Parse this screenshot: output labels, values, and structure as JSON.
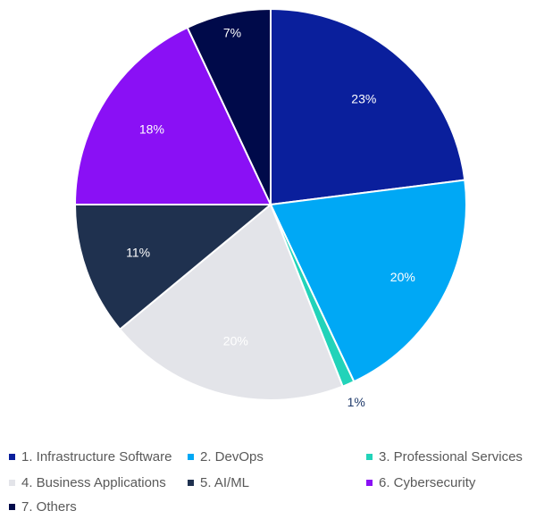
{
  "chart_data": {
    "type": "pie",
    "title": "",
    "slices": [
      {
        "label": "1. Infrastructure Software",
        "value": 23,
        "display": "23%",
        "color": "#0a1f9c",
        "label_color": "#ffffff"
      },
      {
        "label": "2. DevOps",
        "value": 20,
        "display": "20%",
        "color": "#00a8f5",
        "label_color": "#ffffff"
      },
      {
        "label": "3. Professional Services",
        "value": 1,
        "display": "1%",
        "color": "#22d3b9",
        "label_color": "#1f3a6b"
      },
      {
        "label": "4. Business Applications",
        "value": 20,
        "display": "20%",
        "color": "#e3e4e9",
        "label_color": "#ffffff"
      },
      {
        "label": "5. AI/ML",
        "value": 11,
        "display": "11%",
        "color": "#1f314f",
        "label_color": "#ffffff"
      },
      {
        "label": "6. Cybersecurity",
        "value": 18,
        "display": "18%",
        "color": "#8a10f5",
        "label_color": "#ffffff"
      },
      {
        "label": "7. Others",
        "value": 7,
        "display": "7%",
        "color": "#000a4a",
        "label_color": "#ffffff"
      }
    ],
    "legend_position": "bottom"
  }
}
